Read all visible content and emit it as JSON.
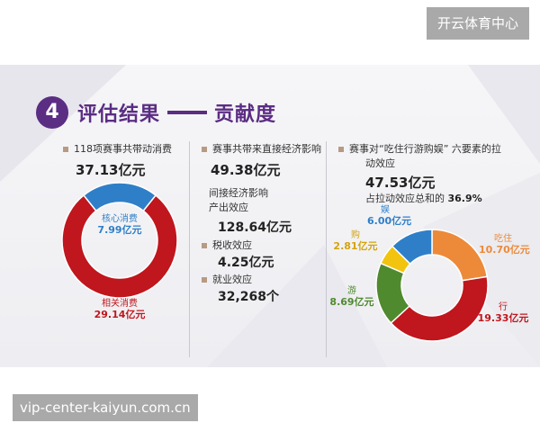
{
  "brand": "开云体育中心",
  "watermark": "vip-center-kaiyun.com.cn",
  "section": {
    "number": "4",
    "title_left": "评估结果",
    "title_right": "贡献度"
  },
  "col1": {
    "label": "118项赛事共带动消费",
    "total": "37.13亿元",
    "inner_label": "核心消费",
    "inner_value": "7.99亿元",
    "outer_label": "相关消费",
    "outer_value": "29.14亿元"
  },
  "col2": {
    "label": "赛事共带来直接经济影响",
    "direct": "49.38亿元",
    "indirect_title": "间接经济影响",
    "output_label": "产出效应",
    "output_value": "128.64亿元",
    "tax_label": "税收效应",
    "tax_value": "4.25亿元",
    "jobs_label": "就业效应",
    "jobs_value": "32,268个"
  },
  "col3": {
    "label_line1": "赛事对“吃住行游购娱” 六要素的拉",
    "label_line2": "动效应",
    "total": "47.53亿元",
    "share_prefix": "占拉动效应总和的",
    "share_value": "36.9%"
  },
  "colors": {
    "purple": "#5b2d83",
    "red": "#c0161d",
    "blue": "#2f7fc8",
    "orange": "#ec8a3a",
    "green": "#4f8a2e",
    "yellow": "#f2c40f"
  },
  "chart_data": [
    {
      "type": "pie",
      "variant": "donut",
      "categories": [
        "核心消费",
        "相关消费"
      ],
      "values": [
        7.99,
        29.14
      ],
      "unit": "亿元",
      "colors": [
        "#2f7fc8",
        "#c0161d"
      ]
    },
    {
      "type": "pie",
      "variant": "donut",
      "categories": [
        "吃住",
        "行",
        "游",
        "购",
        "娱"
      ],
      "values": [
        10.7,
        19.33,
        8.69,
        2.81,
        6.0
      ],
      "labels": [
        "10.70亿元",
        "19.33亿元",
        "8.69亿元",
        "2.81亿元",
        "6.00亿元"
      ],
      "unit": "亿元",
      "colors": [
        "#ec8a3a",
        "#c0161d",
        "#4f8a2e",
        "#f2c40f",
        "#2f7fc8"
      ]
    }
  ]
}
